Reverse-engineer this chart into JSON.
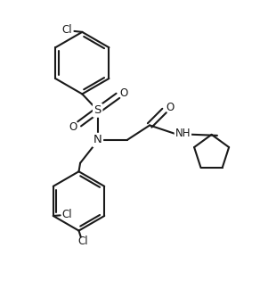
{
  "bg_color": "#ffffff",
  "line_color": "#1a1a1a",
  "line_width": 1.5,
  "figsize": [
    2.92,
    3.15
  ],
  "dpi": 100,
  "xlim": [
    0,
    9.2
  ],
  "ylim": [
    0,
    9.9
  ]
}
